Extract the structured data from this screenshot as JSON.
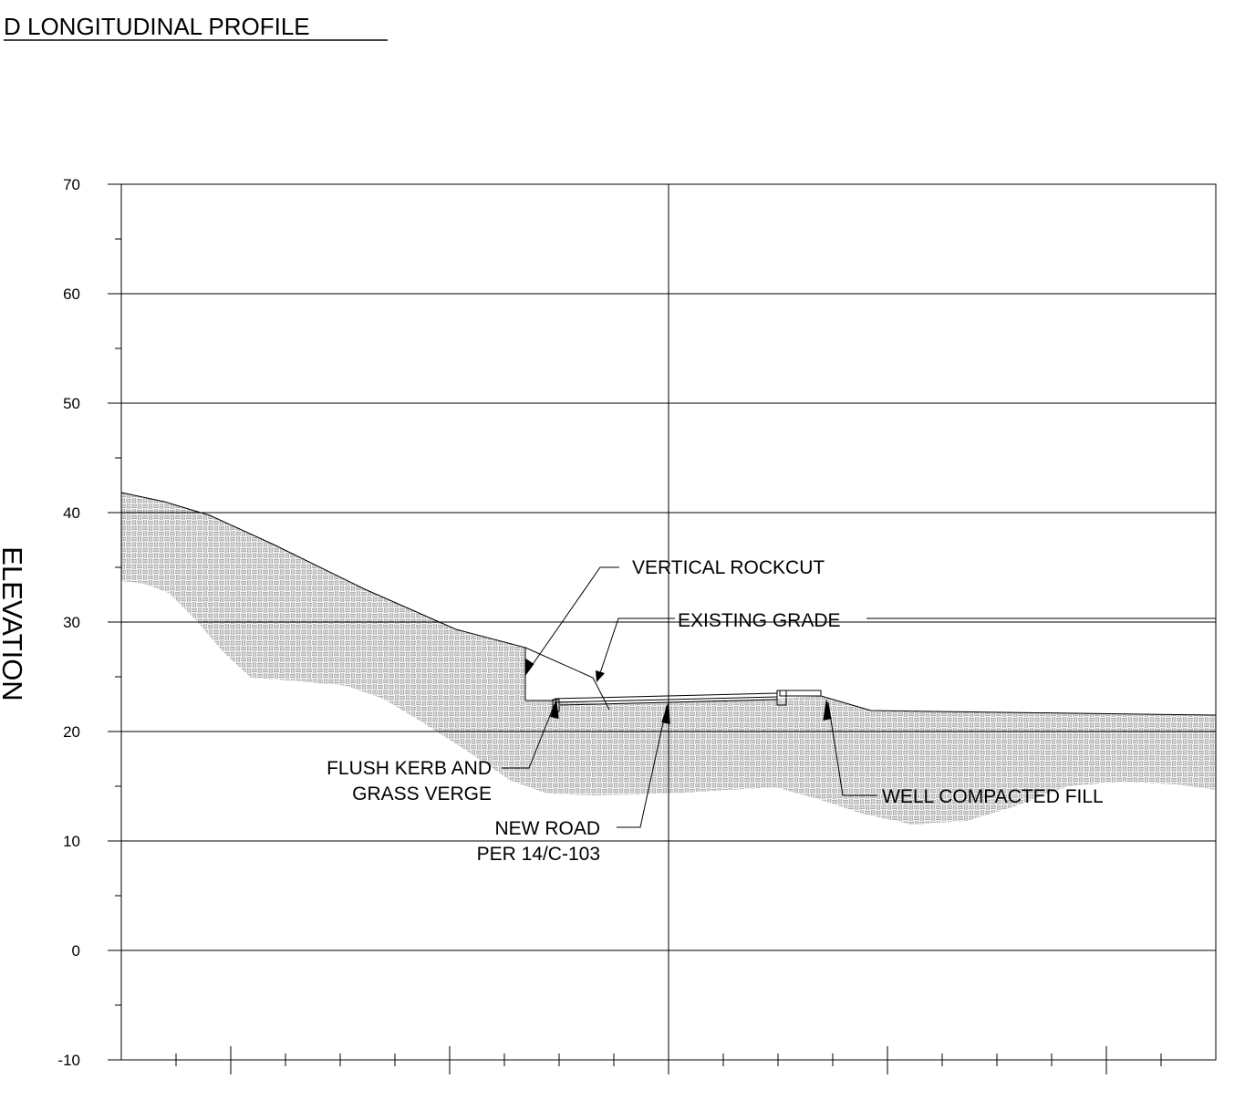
{
  "title": "D LONGITUDINAL PROFILE",
  "y_axis_label": "ELEVATION",
  "y_ticks": [
    "70",
    "60",
    "50",
    "40",
    "30",
    "20",
    "10",
    "0",
    "-10"
  ],
  "annotations": {
    "vertical_rockcut": "VERTICAL ROCKCUT",
    "existing_grade": "EXISTING GRADE",
    "flush_kerb_line1": "FLUSH KERB AND",
    "flush_kerb_line2": "GRASS VERGE",
    "new_road_line1": "NEW ROAD",
    "new_road_line2": "PER 14/C-103",
    "well_compacted_fill": "WELL COMPACTED FILL"
  },
  "colors": {
    "line": "#000000",
    "grid": "#000000",
    "hatch": "#9a9a9a",
    "background": "#ffffff"
  }
}
